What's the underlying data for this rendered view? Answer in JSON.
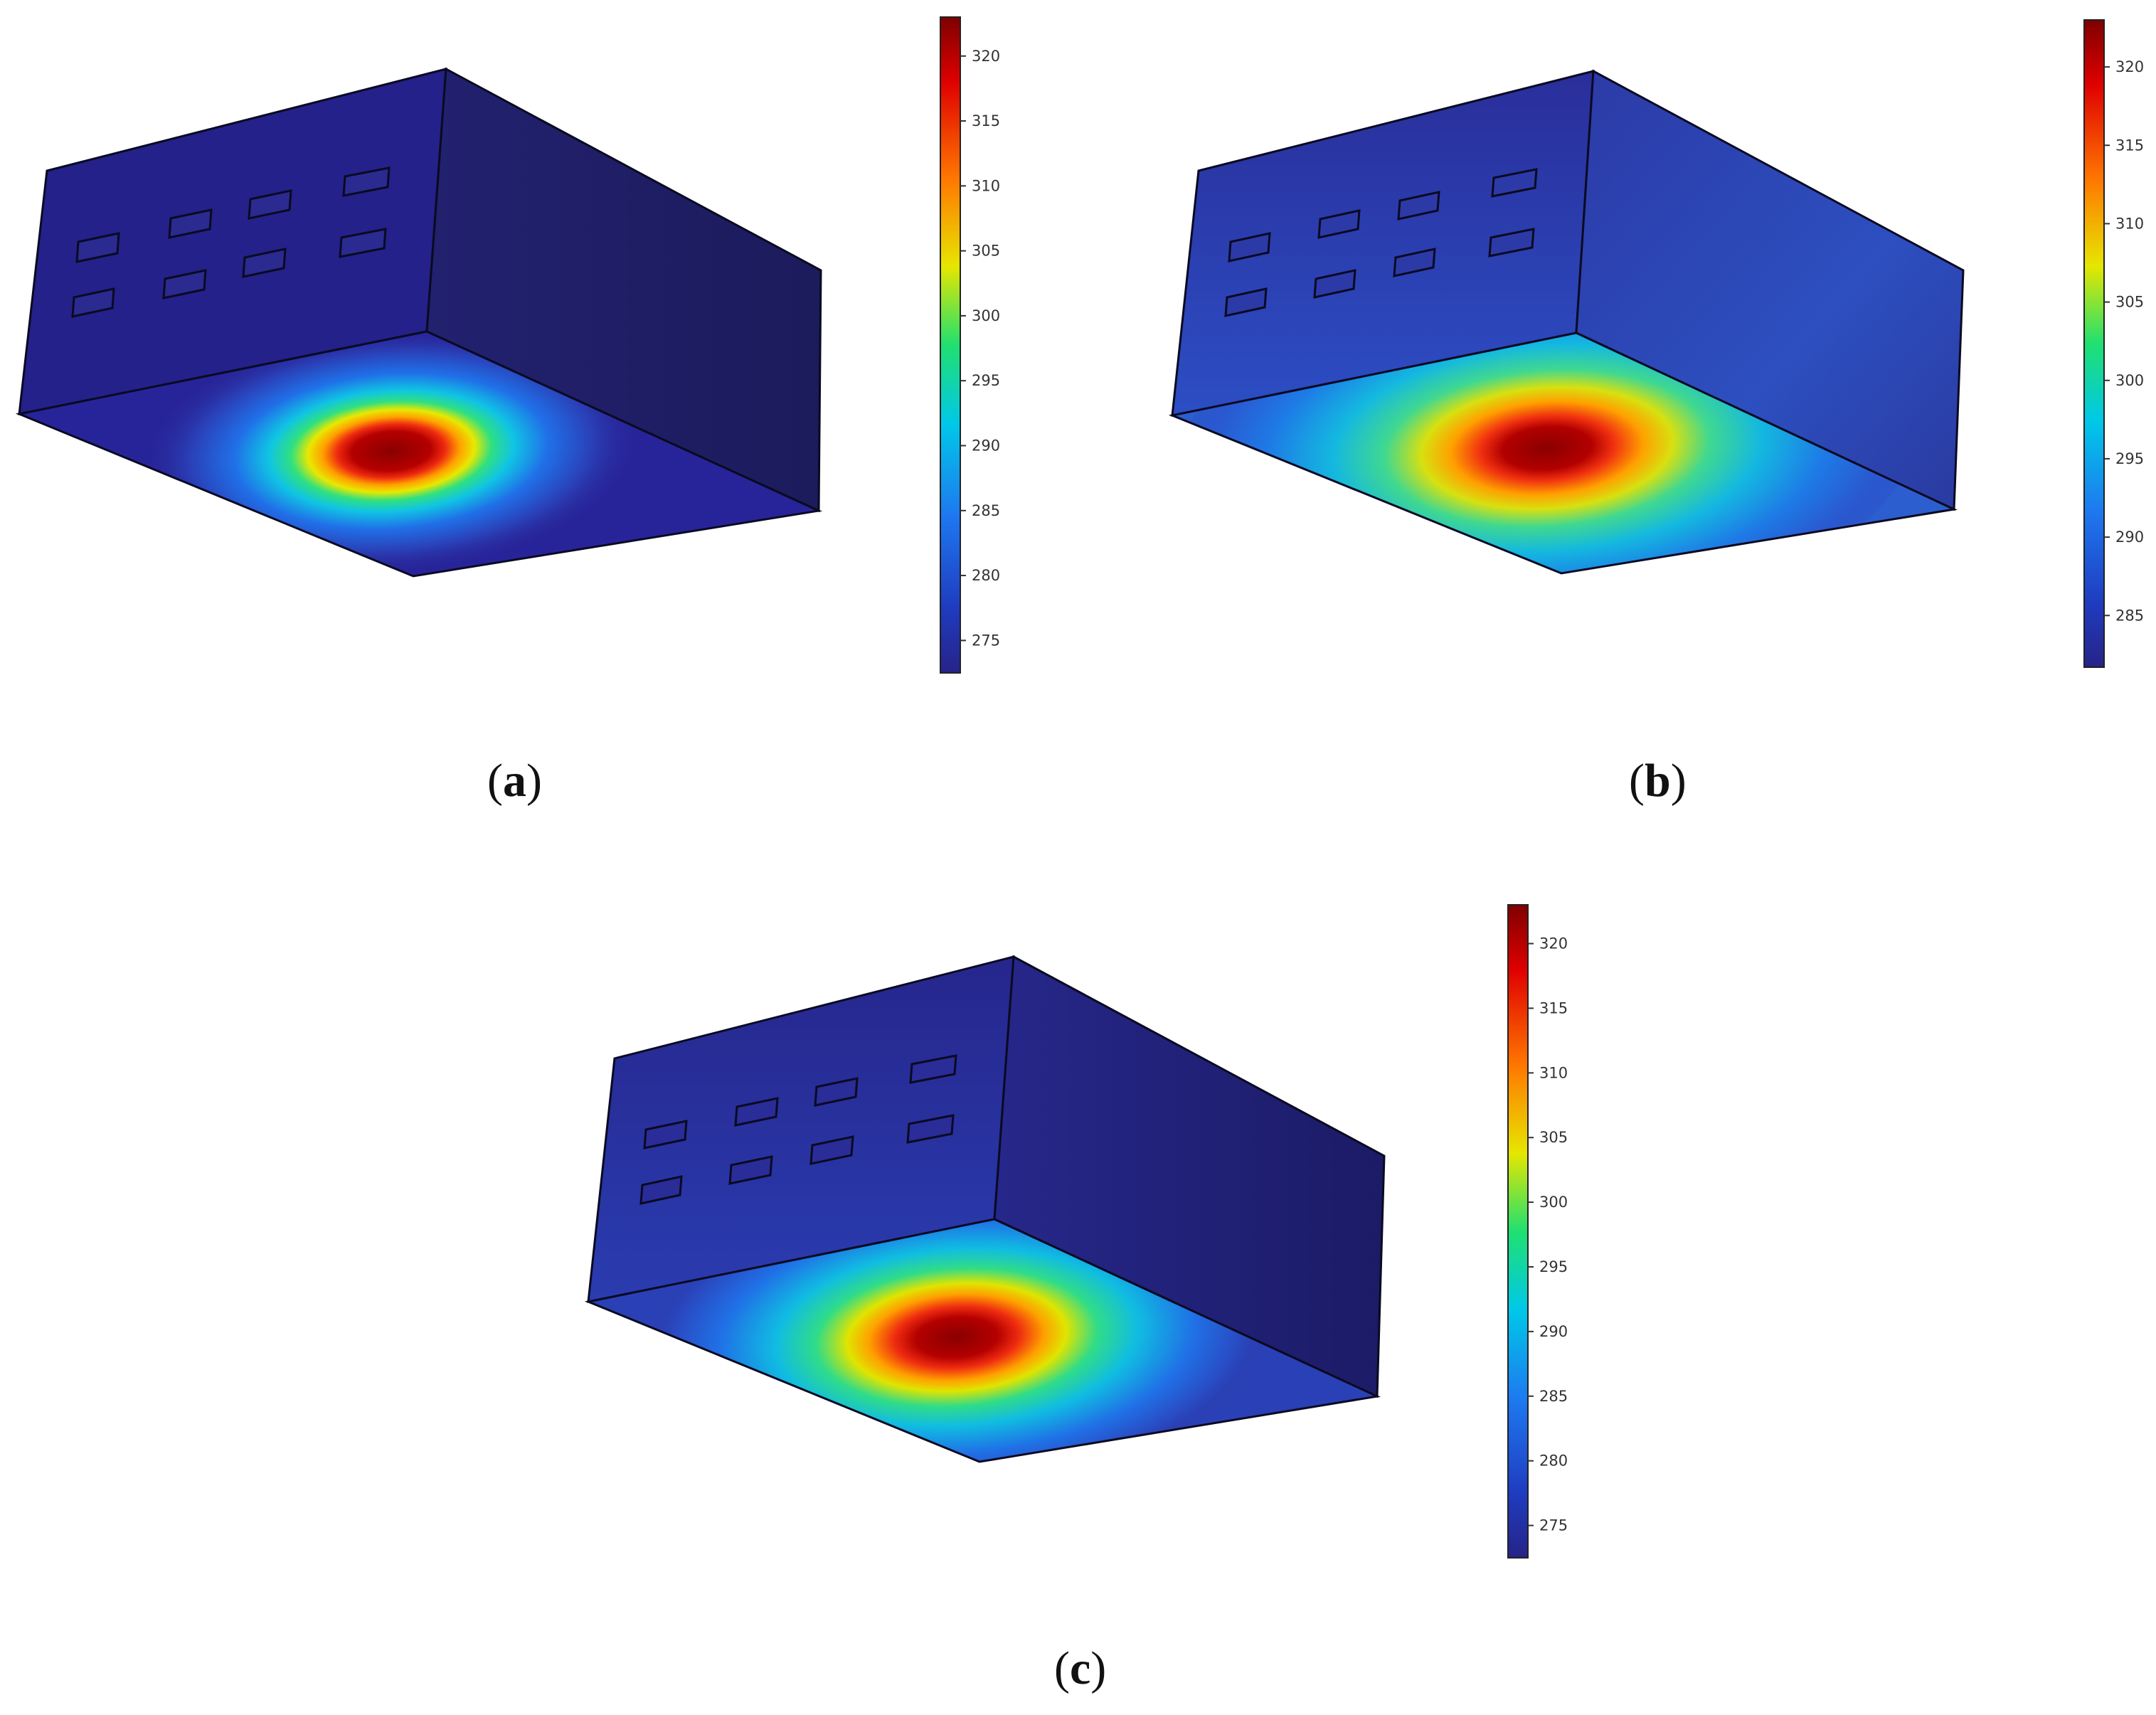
{
  "panels": [
    {
      "id": "a",
      "caption_open": "(",
      "caption_letter": "a",
      "caption_close": ")",
      "colorbar": {
        "min": 272.5,
        "max": 323,
        "ticks": [
          "275",
          "280",
          "285",
          "290",
          "295",
          "300",
          "305",
          "310",
          "315",
          "320"
        ]
      },
      "hotspot_spread": "narrow"
    },
    {
      "id": "b",
      "caption_open": "(",
      "caption_letter": "b",
      "caption_close": ")",
      "colorbar": {
        "min": 281.7,
        "max": 323,
        "ticks": [
          "285",
          "290",
          "295",
          "300",
          "305",
          "310",
          "315",
          "320"
        ]
      },
      "hotspot_spread": "wide"
    },
    {
      "id": "c",
      "caption_open": "(",
      "caption_letter": "c",
      "caption_close": ")",
      "colorbar": {
        "min": 272.5,
        "max": 323,
        "ticks": [
          "275",
          "280",
          "285",
          "290",
          "295",
          "300",
          "305",
          "310",
          "315",
          "320"
        ]
      },
      "hotspot_spread": "medium"
    }
  ],
  "colormap": "rainbow (jet)",
  "colors": {
    "deep_blue": "#241f8c",
    "dark_blue": "#1e1a6e",
    "red": "#c81010",
    "dark_red": "#7a0000",
    "edge": "#0a0a22"
  }
}
